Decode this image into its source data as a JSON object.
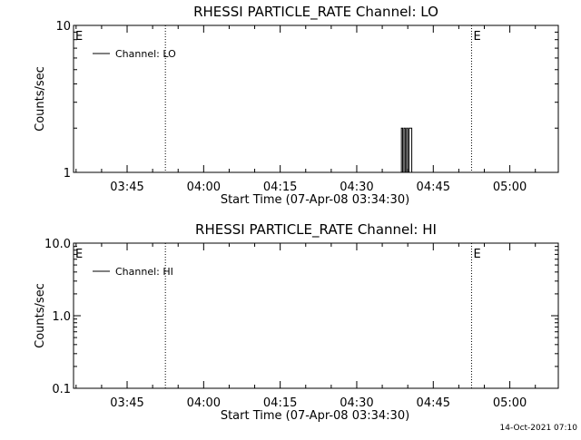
{
  "footer_timestamp": "14-Oct-2021 07:10",
  "chart_data": [
    {
      "type": "line",
      "title": "RHESSI PARTICLE_RATE Channel: LO",
      "xlabel": "Start Time (07-Apr-08 03:34:30)",
      "ylabel": "Counts/sec",
      "yscale": "log",
      "ylim": [
        1,
        10
      ],
      "xlim": [
        "03:34:30",
        "05:09:30"
      ],
      "x_ticks": [
        "03:45",
        "04:00",
        "04:15",
        "04:30",
        "04:45",
        "05:00"
      ],
      "y_ticks": [
        "1",
        "10"
      ],
      "grid": false,
      "legend_position": "top-left",
      "series": [
        {
          "name": "Channel: LO",
          "color": "#000000",
          "x": [
            "04:38:30",
            "04:38:45",
            "04:39:00",
            "04:39:15",
            "04:39:30",
            "04:39:45",
            "04:40:00",
            "04:40:15"
          ],
          "values": [
            1,
            2,
            1,
            2,
            1,
            2,
            1,
            2
          ]
        }
      ],
      "annotations": [
        {
          "label": "E",
          "x": "03:34:30"
        },
        {
          "label": "",
          "x": "03:52:30"
        },
        {
          "label": "E",
          "x": "04:52:30"
        },
        {
          "label": "",
          "x": "05:09:30"
        }
      ]
    },
    {
      "type": "line",
      "title": "RHESSI PARTICLE_RATE Channel: HI",
      "xlabel": "Start Time (07-Apr-08 03:34:30)",
      "ylabel": "Counts/sec",
      "yscale": "log",
      "ylim": [
        0.1,
        10
      ],
      "xlim": [
        "03:34:30",
        "05:09:30"
      ],
      "x_ticks": [
        "03:45",
        "04:00",
        "04:15",
        "04:30",
        "04:45",
        "05:00"
      ],
      "y_ticks": [
        "0.1",
        "1.0",
        "10.0"
      ],
      "grid": false,
      "legend_position": "top-left",
      "series": [
        {
          "name": "Channel: HI",
          "color": "#000000",
          "x": [],
          "values": []
        }
      ],
      "annotations": [
        {
          "label": "E",
          "x": "03:34:30"
        },
        {
          "label": "",
          "x": "03:52:30"
        },
        {
          "label": "E",
          "x": "04:52:30"
        },
        {
          "label": "",
          "x": "05:09:30"
        }
      ]
    }
  ]
}
